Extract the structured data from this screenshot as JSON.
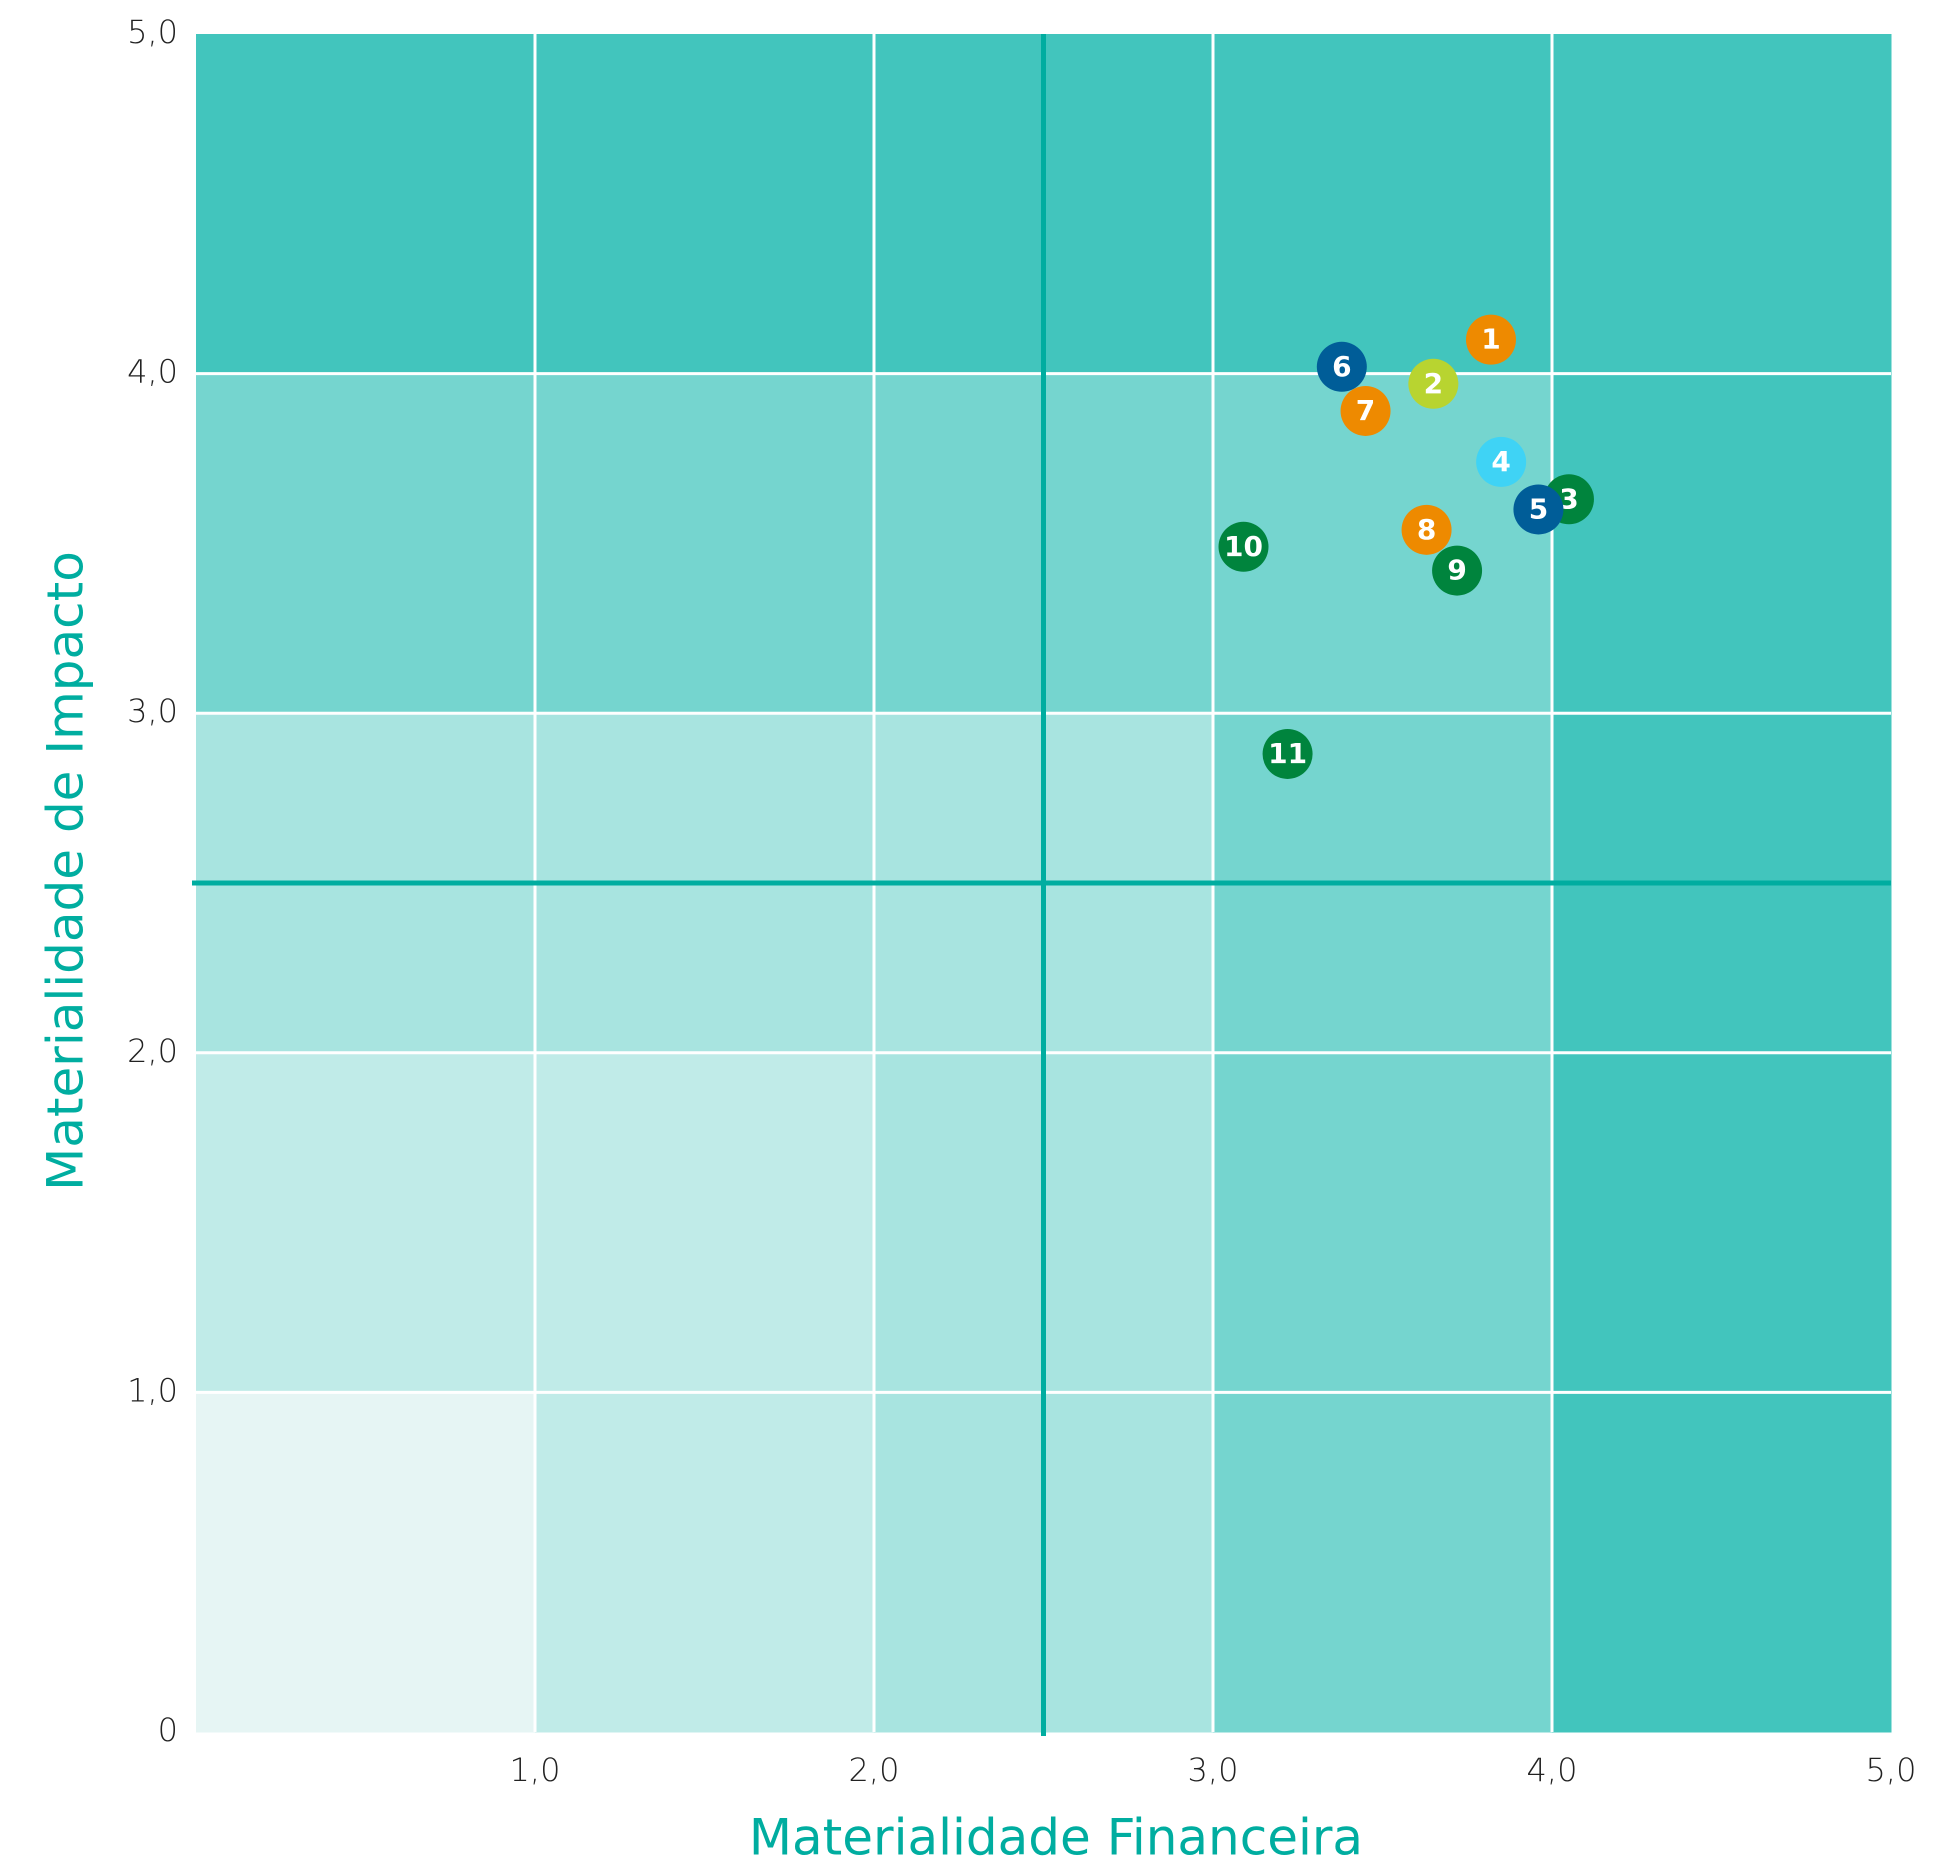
{
  "chart_data": {
    "type": "scatter",
    "xlabel": "Materialidade Financeira",
    "ylabel": "Materialidade de Impacto",
    "xlim": [
      0,
      5
    ],
    "ylim": [
      0,
      5
    ],
    "xticks": [
      {
        "value": 1,
        "label": "1,0"
      },
      {
        "value": 2,
        "label": "2,0"
      },
      {
        "value": 3,
        "label": "3,0"
      },
      {
        "value": 4,
        "label": "4,0"
      },
      {
        "value": 5,
        "label": "5,0"
      }
    ],
    "yticks": [
      0,
      {
        "value": 1,
        "label": "1,0"
      },
      {
        "value": 2,
        "label": "2,0"
      },
      {
        "value": 3,
        "label": "3,0"
      },
      {
        "value": 4,
        "label": "4,0"
      },
      {
        "value": 5,
        "label": "5,0"
      }
    ],
    "grid": true,
    "zone_colors": [
      "#e6f5f4",
      "#c0ebe8",
      "#a8e4e0",
      "#75d5cf",
      "#42c5bd"
    ],
    "thresholds": {
      "x": 2.5,
      "y": 2.5,
      "color": "#00ada0"
    },
    "labels": [
      "1",
      "2",
      "3",
      "4",
      "5",
      "6",
      "7",
      "8",
      "9",
      "10",
      "11"
    ],
    "x": [
      3.82,
      3.65,
      4.05,
      3.85,
      3.96,
      3.38,
      3.45,
      3.63,
      3.72,
      3.09,
      3.22
    ],
    "y": [
      4.1,
      3.97,
      3.63,
      3.74,
      3.6,
      4.02,
      3.89,
      3.54,
      3.42,
      3.49,
      2.88
    ],
    "colors": [
      "#ee8a00",
      "#b8d430",
      "#00843d",
      "#3fd3f5",
      "#005d98",
      "#005d98",
      "#ee8a00",
      "#ee8a00",
      "#00843d",
      "#00843d",
      "#00843d"
    ]
  }
}
